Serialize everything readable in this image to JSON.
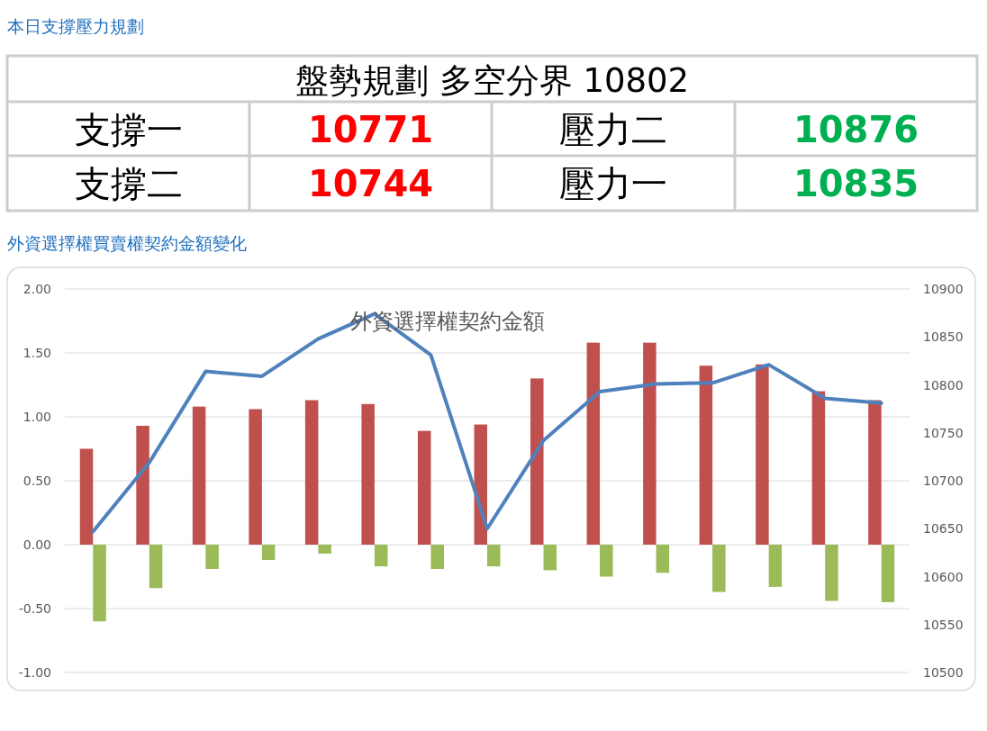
{
  "chart_data": [
    {
      "type": "other",
      "title": "本日支撐壓力規劃",
      "annotations": [
        "盤勢規劃 多空分界 10802",
        "支撐一",
        "10771",
        "壓力二",
        "10876",
        "支撐二",
        "10744",
        "壓力一",
        "10835"
      ],
      "colors": [
        "#000000",
        "#000000",
        "#ff0000",
        "#000000",
        "#00b050",
        "#000000",
        "#ff0000",
        "#000000",
        "#00b050"
      ]
    },
    {
      "type": "bar",
      "title": "外資選擇權買賣權契約金額變化",
      "subtitle": "外資選擇權契約金額",
      "categories": [
        null,
        null,
        null,
        null,
        null,
        null,
        null,
        null,
        null,
        null,
        null,
        null,
        null,
        null,
        null
      ],
      "series": [
        {
          "type": "bar",
          "color": "#c0504d",
          "values": [
            0.75,
            0.93,
            1.08,
            1.06,
            1.13,
            1.1,
            0.89,
            0.94,
            1.3,
            1.58,
            1.58,
            1.4,
            1.41,
            1.2,
            1.13
          ]
        },
        {
          "type": "bar",
          "color": "#9bbb59",
          "values": [
            -0.6,
            -0.34,
            -0.19,
            -0.12,
            -0.07,
            -0.17,
            -0.19,
            -0.17,
            -0.2,
            -0.25,
            -0.22,
            -0.37,
            -0.33,
            -0.44,
            -0.45
          ]
        },
        {
          "type": "line",
          "axis": "y2",
          "color": "#4f81bd",
          "values": [
            10647,
            10719,
            10814,
            10809,
            10848,
            10874,
            10831,
            10650,
            10742,
            10793,
            10801,
            10802,
            10821,
            10786,
            10781
          ]
        }
      ],
      "ylim": [
        -1,
        2
      ],
      "yticks": [
        {
          "value": -1,
          "label": "-1.00"
        },
        {
          "value": -0.5,
          "label": "-0.50"
        },
        {
          "value": 0,
          "label": "0.00"
        },
        {
          "value": 0.5,
          "label": "0.50"
        },
        {
          "value": 1,
          "label": "1.00"
        },
        {
          "value": 1.5,
          "label": "1.50"
        },
        {
          "value": 2,
          "label": "2.00"
        }
      ],
      "y2lim": [
        10500,
        10900
      ],
      "y2ticks": [
        10500,
        10550,
        10600,
        10650,
        10700,
        10750,
        10800,
        10850,
        10900
      ],
      "grid": "y",
      "line_style": "solid",
      "marker": "none"
    }
  ]
}
